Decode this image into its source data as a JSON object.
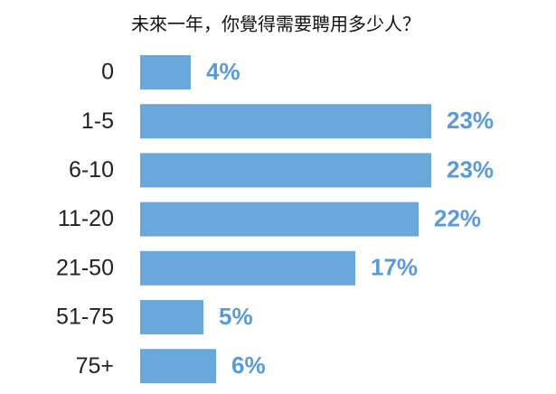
{
  "chart_data": {
    "type": "bar",
    "orientation": "horizontal",
    "title": "未來一年，你覺得需要聘用多少人？",
    "categories": [
      "0",
      "1-5",
      "6-10",
      "11-20",
      "21-50",
      "51-75",
      "75+"
    ],
    "values": [
      4,
      23,
      23,
      22,
      17,
      5,
      6
    ],
    "value_labels": [
      "4%",
      "23%",
      "23%",
      "22%",
      "17%",
      "5%",
      "6%"
    ],
    "color": "#6aa8dc",
    "label_color": "#5b9bd5"
  }
}
